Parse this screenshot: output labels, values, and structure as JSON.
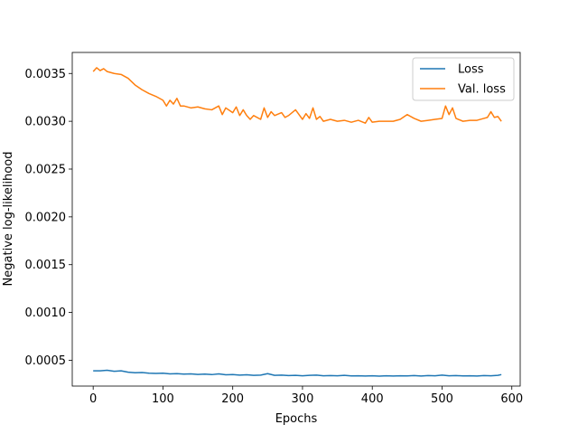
{
  "chart_data": {
    "type": "line",
    "title": "",
    "xlabel": "Epochs",
    "ylabel": "Negative log-likelihood",
    "xlim": [
      -30,
      612
    ],
    "ylim": [
      0.00023,
      0.00372
    ],
    "xticks": [
      0,
      100,
      200,
      300,
      400,
      500,
      600
    ],
    "xtick_labels": [
      "0",
      "100",
      "200",
      "300",
      "400",
      "500",
      "600"
    ],
    "yticks": [
      0.0005,
      0.001,
      0.0015,
      0.002,
      0.0025,
      0.003,
      0.0035
    ],
    "ytick_labels": [
      "0.0005",
      "0.0010",
      "0.0015",
      "0.0020",
      "0.0025",
      "0.0030",
      "0.0035"
    ],
    "grid": false,
    "legend_position": "top-right",
    "series": [
      {
        "name": "Loss",
        "color": "#1f77b4",
        "x": [
          0,
          10,
          20,
          30,
          40,
          50,
          60,
          70,
          80,
          90,
          100,
          110,
          120,
          130,
          140,
          150,
          160,
          170,
          180,
          190,
          200,
          210,
          220,
          230,
          240,
          250,
          260,
          270,
          280,
          290,
          300,
          310,
          320,
          330,
          340,
          350,
          360,
          370,
          380,
          390,
          400,
          410,
          420,
          430,
          440,
          450,
          460,
          470,
          480,
          490,
          500,
          510,
          520,
          530,
          540,
          550,
          560,
          570,
          580,
          585
        ],
        "y": [
          0.00039,
          0.00039,
          0.000395,
          0.000385,
          0.00039,
          0.000375,
          0.00037,
          0.000372,
          0.000365,
          0.000362,
          0.000365,
          0.000358,
          0.00036,
          0.000355,
          0.000358,
          0.000352,
          0.000355,
          0.00035,
          0.000358,
          0.000348,
          0.00035,
          0.000345,
          0.000348,
          0.000342,
          0.000345,
          0.00036,
          0.000342,
          0.000345,
          0.00034,
          0.000342,
          0.000338,
          0.000342,
          0.000345,
          0.000338,
          0.00034,
          0.000338,
          0.000342,
          0.000336,
          0.000338,
          0.000335,
          0.000338,
          0.000334,
          0.000338,
          0.000335,
          0.000338,
          0.000336,
          0.00034,
          0.000335,
          0.00034,
          0.000338,
          0.000345,
          0.000338,
          0.00034,
          0.000336,
          0.000338,
          0.000335,
          0.00034,
          0.000338,
          0.000342,
          0.00035
        ]
      },
      {
        "name": "Val. loss",
        "color": "#ff7f0e",
        "x": [
          0,
          5,
          10,
          15,
          20,
          30,
          40,
          50,
          60,
          70,
          80,
          90,
          100,
          105,
          110,
          115,
          120,
          125,
          130,
          140,
          150,
          160,
          170,
          180,
          185,
          190,
          200,
          205,
          210,
          215,
          220,
          225,
          230,
          240,
          245,
          250,
          255,
          260,
          270,
          275,
          280,
          290,
          300,
          305,
          310,
          315,
          320,
          325,
          330,
          340,
          350,
          360,
          370,
          380,
          390,
          395,
          400,
          410,
          420,
          430,
          440,
          450,
          460,
          470,
          480,
          490,
          500,
          505,
          510,
          515,
          520,
          530,
          540,
          550,
          560,
          565,
          570,
          575,
          580,
          585
        ],
        "y": [
          0.00352,
          0.00356,
          0.00353,
          0.00355,
          0.00352,
          0.0035,
          0.00349,
          0.00345,
          0.00338,
          0.00333,
          0.00329,
          0.00326,
          0.00322,
          0.00316,
          0.00322,
          0.00318,
          0.00324,
          0.00316,
          0.00316,
          0.00314,
          0.00315,
          0.00313,
          0.00312,
          0.00316,
          0.00307,
          0.00314,
          0.00309,
          0.00315,
          0.00306,
          0.00312,
          0.00306,
          0.00302,
          0.00306,
          0.00302,
          0.00314,
          0.00304,
          0.0031,
          0.00306,
          0.00309,
          0.00304,
          0.00306,
          0.00312,
          0.00302,
          0.00308,
          0.00303,
          0.00314,
          0.00302,
          0.00305,
          0.003,
          0.00302,
          0.003,
          0.00301,
          0.00299,
          0.00301,
          0.00298,
          0.00304,
          0.00299,
          0.003,
          0.003,
          0.003,
          0.00302,
          0.00307,
          0.00303,
          0.003,
          0.00301,
          0.00302,
          0.00303,
          0.00316,
          0.00307,
          0.00314,
          0.00303,
          0.003,
          0.00301,
          0.00301,
          0.00303,
          0.00304,
          0.0031,
          0.00304,
          0.00305,
          0.003
        ]
      }
    ]
  }
}
